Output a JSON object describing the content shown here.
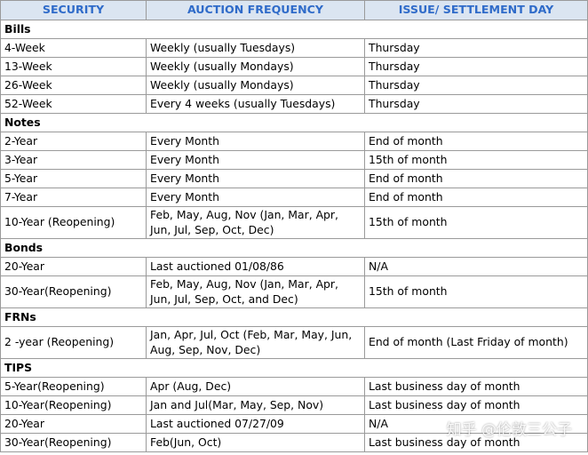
{
  "table": {
    "header": [
      "SECURITY",
      "AUCTION FREQUENCY",
      "ISSUE/ SETTLEMENT DAY"
    ],
    "sections": [
      {
        "title": "Bills",
        "rows": [
          [
            "4-Week",
            "Weekly (usually Tuesdays)",
            "Thursday"
          ],
          [
            "13-Week",
            "Weekly (usually Mondays)",
            "Thursday"
          ],
          [
            "26-Week",
            "Weekly (usually Mondays)",
            "Thursday"
          ],
          [
            "52-Week",
            "Every 4 weeks (usually Tuesdays)",
            "Thursday"
          ]
        ]
      },
      {
        "title": "Notes",
        "rows": [
          [
            "2-Year",
            "Every Month",
            "End of month"
          ],
          [
            "3-Year",
            "Every Month",
            "15th of month"
          ],
          [
            "5-Year",
            "Every Month",
            "End of month"
          ],
          [
            "7-Year",
            "Every Month",
            "End of month"
          ],
          [
            "10-Year (Reopening)",
            "Feb, May, Aug, Nov (Jan, Mar, Apr, Jun, Jul, Sep, Oct, Dec)",
            "15th of month"
          ]
        ]
      },
      {
        "title": "Bonds",
        "rows": [
          [
            "20-Year",
            "Last auctioned 01/08/86",
            "N/A"
          ],
          [
            "30-Year(Reopening)",
            "Feb, May, Aug, Nov (Jan, Mar, Apr, Jun, Jul, Sep, Oct, and Dec)",
            "15th of month"
          ]
        ]
      },
      {
        "title": "FRNs",
        "rows": [
          [
            "2 -year (Reopening)",
            "Jan, Apr, Jul, Oct (Feb, Mar, May, Jun, Aug, Sep, Nov, Dec)",
            "End of month (Last Friday of month)"
          ]
        ]
      },
      {
        "title": "TIPS",
        "rows": [
          [
            "5-Year(Reopening)",
            "Apr (Aug, Dec)",
            "Last business day of month"
          ],
          [
            "10-Year(Reopening)",
            "Jan and Jul(Mar, May, Sep, Nov)",
            "Last business day of month"
          ],
          [
            "20-Year",
            "Last auctioned 07/27/09",
            "N/A"
          ],
          [
            "30-Year(Reopening)",
            "Feb(Jun, Oct)",
            "Last business day of month"
          ]
        ]
      }
    ]
  },
  "watermark": "知乎 @伦敦三公子"
}
